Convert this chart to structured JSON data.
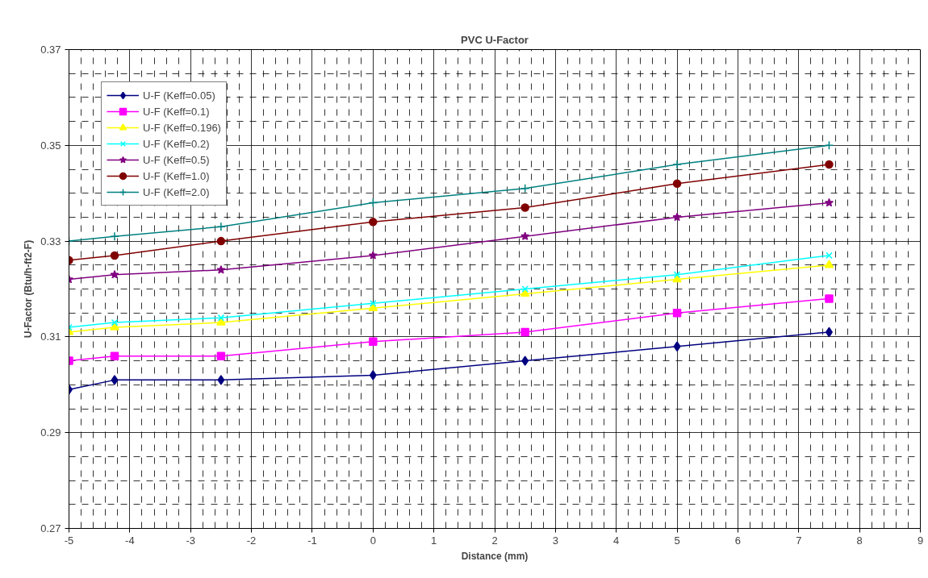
{
  "chart_data": {
    "type": "line",
    "title": "PVC U-Factor",
    "xlabel": "Distance (mm)",
    "ylabel": "U-Factor (Btu/h-ft2-F)",
    "x": [
      -5,
      -4.25,
      -2.5,
      0,
      2.5,
      5,
      7.5
    ],
    "xlim": [
      -5,
      9
    ],
    "xticks": [
      -5,
      -4,
      -3,
      -2,
      -1,
      0,
      1,
      2,
      3,
      4,
      5,
      6,
      7,
      8,
      9
    ],
    "ylim": [
      0.27,
      0.37
    ],
    "yticks": [
      0.27,
      0.29,
      0.31,
      0.33,
      0.35,
      0.37
    ],
    "grid": true,
    "legend": "top left",
    "series": [
      {
        "name": "U-F (Keff=0.05)",
        "color": "#000080",
        "marker": "diamond",
        "values": [
          0.299,
          0.301,
          0.301,
          0.302,
          0.305,
          0.308,
          0.311
        ]
      },
      {
        "name": "U-F (Keff=0.1)",
        "color": "#ff00ff",
        "marker": "square",
        "values": [
          0.305,
          0.306,
          0.306,
          0.309,
          0.311,
          0.315,
          0.318
        ]
      },
      {
        "name": "U-F (Keff=0.196)",
        "color": "#ffff00",
        "marker": "triangle",
        "values": [
          0.311,
          0.312,
          0.313,
          0.316,
          0.319,
          0.322,
          0.325
        ]
      },
      {
        "name": "U-F (Keff=0.2)",
        "color": "#00ffff",
        "marker": "x",
        "values": [
          0.312,
          0.313,
          0.314,
          0.317,
          0.32,
          0.323,
          0.327
        ]
      },
      {
        "name": "U-F (Keff=0.5)",
        "color": "#800080",
        "marker": "star",
        "values": [
          0.322,
          0.323,
          0.324,
          0.327,
          0.331,
          0.335,
          0.338
        ]
      },
      {
        "name": "U-F (Keff=1.0)",
        "color": "#800000",
        "marker": "circle",
        "values": [
          0.326,
          0.327,
          0.33,
          0.334,
          0.337,
          0.342,
          0.346
        ]
      },
      {
        "name": "U-F (Keff=2.0)",
        "color": "#008080",
        "marker": "cross",
        "values": [
          0.33,
          0.331,
          0.333,
          0.338,
          0.341,
          0.346,
          0.35
        ]
      }
    ]
  }
}
